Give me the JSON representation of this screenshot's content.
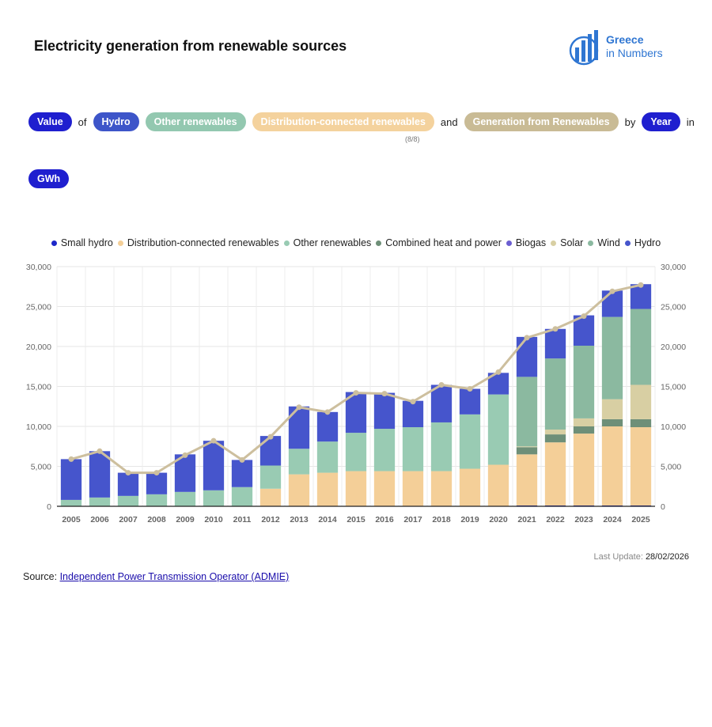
{
  "page": {
    "title": "Electricity generation from renewable sources",
    "logo_line1": "Greece",
    "logo_line2": "in Numbers",
    "last_update_label": "Last Update:",
    "last_update_value": "28/02/2026",
    "source_label": "Source:",
    "source_link": "Independent Power Transmission Operator (ADMIE)"
  },
  "filters": {
    "value": "Value",
    "of": "of",
    "hydro": "Hydro",
    "other": "Other renewables",
    "dist": "Distribution-connected renewables",
    "and": "and",
    "gen": "Generation from Renewables",
    "by": "by",
    "year": "Year",
    "in": "in",
    "unit": "GWh",
    "count": "(8/8)"
  },
  "colors": {
    "pill_dark": "#1f1fcf",
    "pill_hydro": "#3d55c9",
    "pill_other": "#93c8b0",
    "pill_dist": "#f4d29d",
    "pill_gen": "#c9bb95",
    "logo": "#2f76d2"
  },
  "chart_data": {
    "type": "bar",
    "stacked": true,
    "categories": [
      "2005",
      "2006",
      "2007",
      "2008",
      "2009",
      "2010",
      "2011",
      "2012",
      "2013",
      "2014",
      "2015",
      "2016",
      "2017",
      "2018",
      "2019",
      "2020",
      "2021",
      "2022",
      "2023",
      "2024",
      "2025"
    ],
    "ylim": [
      0,
      30000
    ],
    "yticks": [
      0,
      5000,
      10000,
      15000,
      20000,
      25000,
      30000
    ],
    "ytick_labels": [
      "0",
      "5,000",
      "10,000",
      "15,000",
      "20,000",
      "25,000",
      "30,000"
    ],
    "legend_position": "top",
    "grid": true,
    "series": [
      {
        "name": "Small hydro",
        "color": "#1d27c9",
        "values": [
          0,
          0,
          0,
          0,
          0,
          0,
          0,
          0,
          0,
          0,
          0,
          0,
          0,
          0,
          0,
          0,
          100,
          100,
          100,
          100,
          100
        ]
      },
      {
        "name": "Distribution-connected renewables",
        "color": "#f4cf98",
        "values": [
          0,
          0,
          0,
          0,
          0,
          0,
          0,
          2200,
          4000,
          4200,
          4400,
          4400,
          4400,
          4400,
          4700,
          5200,
          6400,
          7900,
          9000,
          9900,
          9800
        ]
      },
      {
        "name": "Other renewables",
        "color": "#99cbb3",
        "values": [
          800,
          1100,
          1300,
          1500,
          1800,
          2000,
          2400,
          2900,
          3200,
          3900,
          4800,
          5300,
          5500,
          6100,
          6800,
          8800,
          0,
          0,
          0,
          0,
          0
        ]
      },
      {
        "name": "Combined heat and power",
        "color": "#6e8f78",
        "values": [
          0,
          0,
          0,
          0,
          0,
          0,
          0,
          0,
          0,
          0,
          0,
          0,
          0,
          0,
          0,
          0,
          900,
          1000,
          900,
          900,
          1000
        ]
      },
      {
        "name": "Biogas",
        "color": "#6b5ed1",
        "values": [
          0,
          0,
          0,
          0,
          0,
          0,
          0,
          0,
          0,
          0,
          0,
          0,
          0,
          0,
          0,
          0,
          0,
          0,
          0,
          0,
          0
        ]
      },
      {
        "name": "Solar",
        "color": "#d8cfa3",
        "values": [
          0,
          0,
          0,
          0,
          0,
          0,
          0,
          0,
          0,
          0,
          0,
          0,
          0,
          0,
          0,
          0,
          100,
          600,
          1000,
          2500,
          4300
        ]
      },
      {
        "name": "Wind",
        "color": "#8bb9a0",
        "values": [
          0,
          0,
          0,
          0,
          0,
          0,
          0,
          0,
          0,
          0,
          0,
          0,
          0,
          0,
          0,
          0,
          8700,
          8900,
          9100,
          10300,
          9500
        ]
      },
      {
        "name": "Hydro",
        "color": "#4655cc",
        "values": [
          5100,
          5800,
          2900,
          2700,
          4700,
          6200,
          3400,
          3700,
          5300,
          3700,
          5100,
          4500,
          3300,
          4700,
          3200,
          2700,
          5000,
          3700,
          3800,
          3300,
          3100
        ]
      }
    ],
    "line": {
      "name": "Generation from Renewables",
      "color": "#cdbf9e",
      "values": [
        5900,
        6900,
        4200,
        4200,
        6400,
        8200,
        5800,
        8700,
        12400,
        11800,
        14200,
        14100,
        13100,
        15200,
        14700,
        16800,
        21100,
        22200,
        23800,
        26900,
        27700
      ]
    }
  }
}
